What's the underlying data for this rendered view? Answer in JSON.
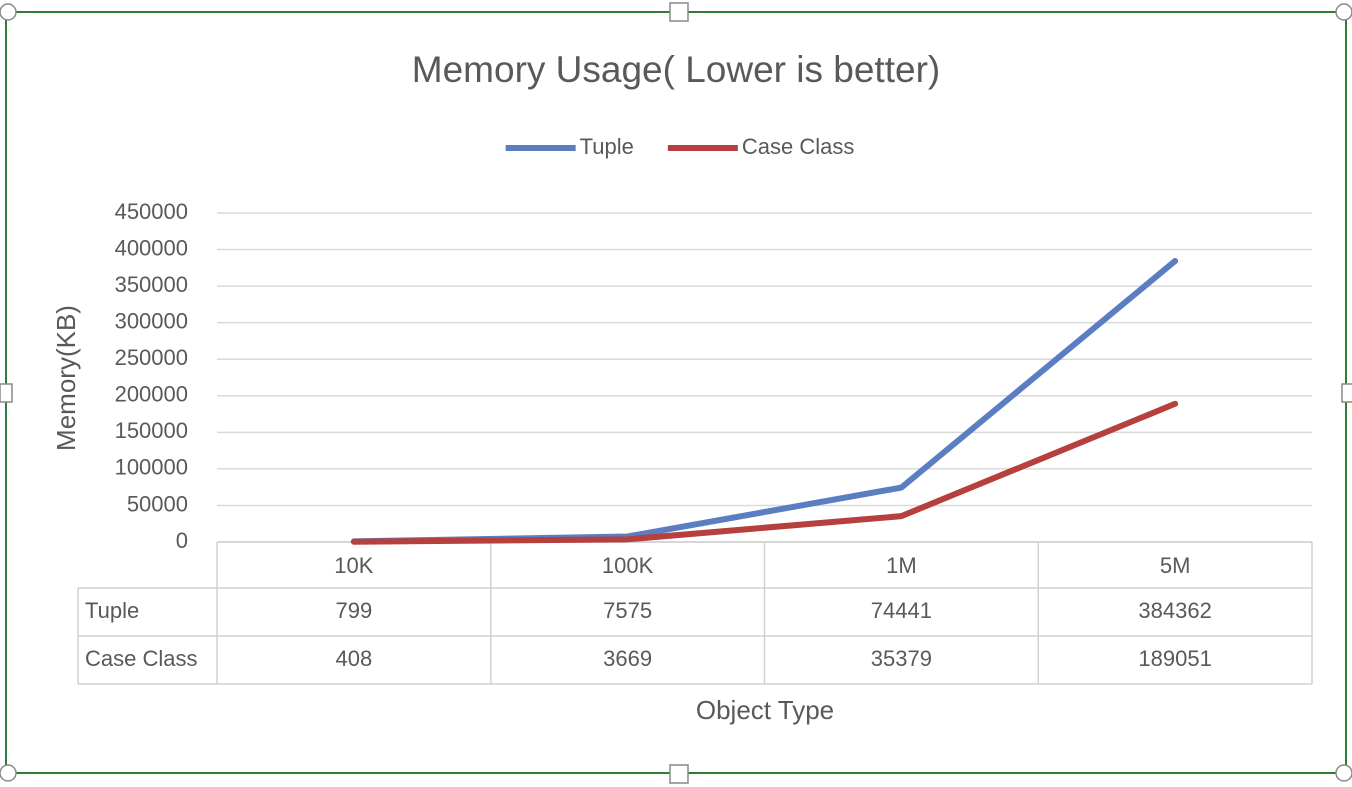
{
  "chart_data": {
    "type": "line",
    "title": "Memory Usage( Lower is better)",
    "y_label": "Memory(KB)",
    "x_label": "Object Type",
    "categories": [
      "10K",
      "100K",
      "1M",
      "5M"
    ],
    "series": [
      {
        "name": "Tuple",
        "color": "#5b7ec2",
        "values": [
          799,
          7575,
          74441,
          384362
        ]
      },
      {
        "name": "Case Class",
        "color": "#b5403d",
        "values": [
          408,
          3669,
          35379,
          189051
        ]
      }
    ],
    "ylim": [
      0,
      450000
    ],
    "yticks": [
      0,
      50000,
      100000,
      150000,
      200000,
      250000,
      300000,
      350000,
      400000,
      450000
    ],
    "grid": true,
    "legend": "top",
    "data_table": true
  }
}
